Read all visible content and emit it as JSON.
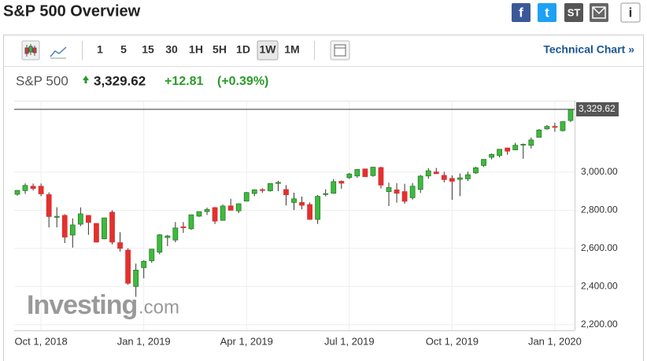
{
  "header": {
    "title": "S&P 500 Overview",
    "share": [
      "f",
      "t",
      "ST",
      "i"
    ]
  },
  "toolbar": {
    "intervals": [
      "1",
      "5",
      "15",
      "30",
      "1H",
      "5H",
      "1D",
      "1W",
      "1M"
    ],
    "selected": "1W",
    "link": "Technical Chart »"
  },
  "quote": {
    "name": "S&P 500",
    "price": "3,329.62",
    "change": "+12.81",
    "change_pct": "(+0.39%)"
  },
  "chart_data": {
    "type": "candlestick",
    "categories": [
      null,
      null,
      null,
      "Oct 1, 2018",
      null,
      null,
      null,
      null,
      null,
      null,
      null,
      null,
      null,
      null,
      null,
      null,
      "Jan 1, 2019",
      null,
      null,
      null,
      null,
      null,
      null,
      null,
      null,
      null,
      null,
      null,
      null,
      "Apr 1, 2019",
      null,
      null,
      null,
      null,
      null,
      null,
      null,
      null,
      null,
      null,
      null,
      null,
      "Jul 1, 2019",
      null,
      null,
      null,
      null,
      null,
      null,
      null,
      null,
      null,
      null,
      null,
      null,
      "Oct 1, 2019",
      null,
      null,
      null,
      null,
      null,
      null,
      null,
      null,
      null,
      null,
      null,
      null,
      "Jan 1, 2020",
      null,
      null
    ],
    "open": [
      2884,
      2903,
      2926,
      2926,
      2882,
      2763,
      2773,
      2670,
      2727,
      2773,
      2731,
      2650,
      2790,
      2630,
      2591,
      2400,
      2499,
      2535,
      2580,
      2657,
      2644,
      2713,
      2703,
      2769,
      2793,
      2814,
      2747,
      2823,
      2797,
      2848,
      2888,
      2908,
      2902,
      2941,
      2909,
      2841,
      2841,
      2830,
      2752,
      2886,
      2889,
      2952,
      2971,
      2980,
      3017,
      2982,
      3024,
      2898,
      2907,
      2898,
      2866,
      2909,
      2980,
      3001,
      2983,
      2967,
      2962,
      2965,
      2996,
      3035,
      3078,
      3087,
      3127,
      3117,
      3143,
      3141,
      3183,
      3227,
      3240,
      3218,
      3271
    ],
    "high": [
      2906,
      2941,
      2940,
      2940,
      2894,
      2816,
      2779,
      2757,
      2815,
      2775,
      2731,
      2760,
      2800,
      2685,
      2601,
      2520,
      2538,
      2597,
      2675,
      2671,
      2738,
      2738,
      2776,
      2793,
      2814,
      2817,
      2830,
      2860,
      2836,
      2896,
      2910,
      2916,
      2940,
      2955,
      2932,
      2892,
      2872,
      2841,
      2880,
      2910,
      2964,
      2956,
      2996,
      3014,
      3017,
      3028,
      3029,
      2945,
      2943,
      2939,
      2943,
      2985,
      3021,
      3022,
      3002,
      2983,
      2993,
      3003,
      3028,
      3067,
      3098,
      3121,
      3128,
      3154,
      3150,
      3182,
      3226,
      3247,
      3259,
      3267,
      3330
    ],
    "low": [
      2876,
      2886,
      2904,
      2874,
      2710,
      2710,
      2628,
      2604,
      2717,
      2671,
      2631,
      2648,
      2621,
      2583,
      2409,
      2346,
      2443,
      2524,
      2569,
      2612,
      2632,
      2681,
      2697,
      2765,
      2775,
      2728,
      2745,
      2800,
      2785,
      2848,
      2874,
      2892,
      2898,
      2900,
      2825,
      2801,
      2805,
      2750,
      2728,
      2873,
      2887,
      2913,
      2964,
      2970,
      2975,
      2976,
      2914,
      2822,
      2840,
      2834,
      2856,
      2891,
      2965,
      2991,
      2946,
      2855,
      2874,
      2953,
      2991,
      3027,
      3067,
      3078,
      3091,
      3115,
      3070,
      3124,
      3183,
      3223,
      3212,
      3213,
      3263
    ],
    "close": [
      2904,
      2930,
      2914,
      2886,
      2767,
      2768,
      2659,
      2723,
      2781,
      2736,
      2633,
      2760,
      2633,
      2600,
      2417,
      2486,
      2532,
      2596,
      2671,
      2665,
      2707,
      2708,
      2776,
      2793,
      2804,
      2743,
      2822,
      2800,
      2834,
      2893,
      2907,
      2905,
      2940,
      2946,
      2881,
      2860,
      2826,
      2752,
      2873,
      2887,
      2950,
      2942,
      2990,
      3014,
      2976,
      3026,
      2932,
      2919,
      2889,
      2847,
      2926,
      2979,
      3007,
      2992,
      2961,
      2952,
      2970,
      2986,
      3023,
      3067,
      3093,
      3120,
      3110,
      3141,
      3146,
      3169,
      3221,
      3240,
      3235,
      3265,
      3329.62
    ],
    "up_color": "#3dbb3d",
    "down_color": "#e2312f",
    "ylim": [
      2170,
      3375
    ],
    "yticks": [
      {
        "value": 2200,
        "label": "2,200.00"
      },
      {
        "value": 2400,
        "label": "2,400.00"
      },
      {
        "value": 2600,
        "label": "2,600.00"
      },
      {
        "value": 2800,
        "label": "2,800.00"
      },
      {
        "value": 3000,
        "label": "3,000.00"
      }
    ],
    "last_price": {
      "value": 3329.62,
      "label": "3,329.62"
    },
    "grid": true,
    "watermark": [
      "Investing",
      ".com"
    ]
  }
}
